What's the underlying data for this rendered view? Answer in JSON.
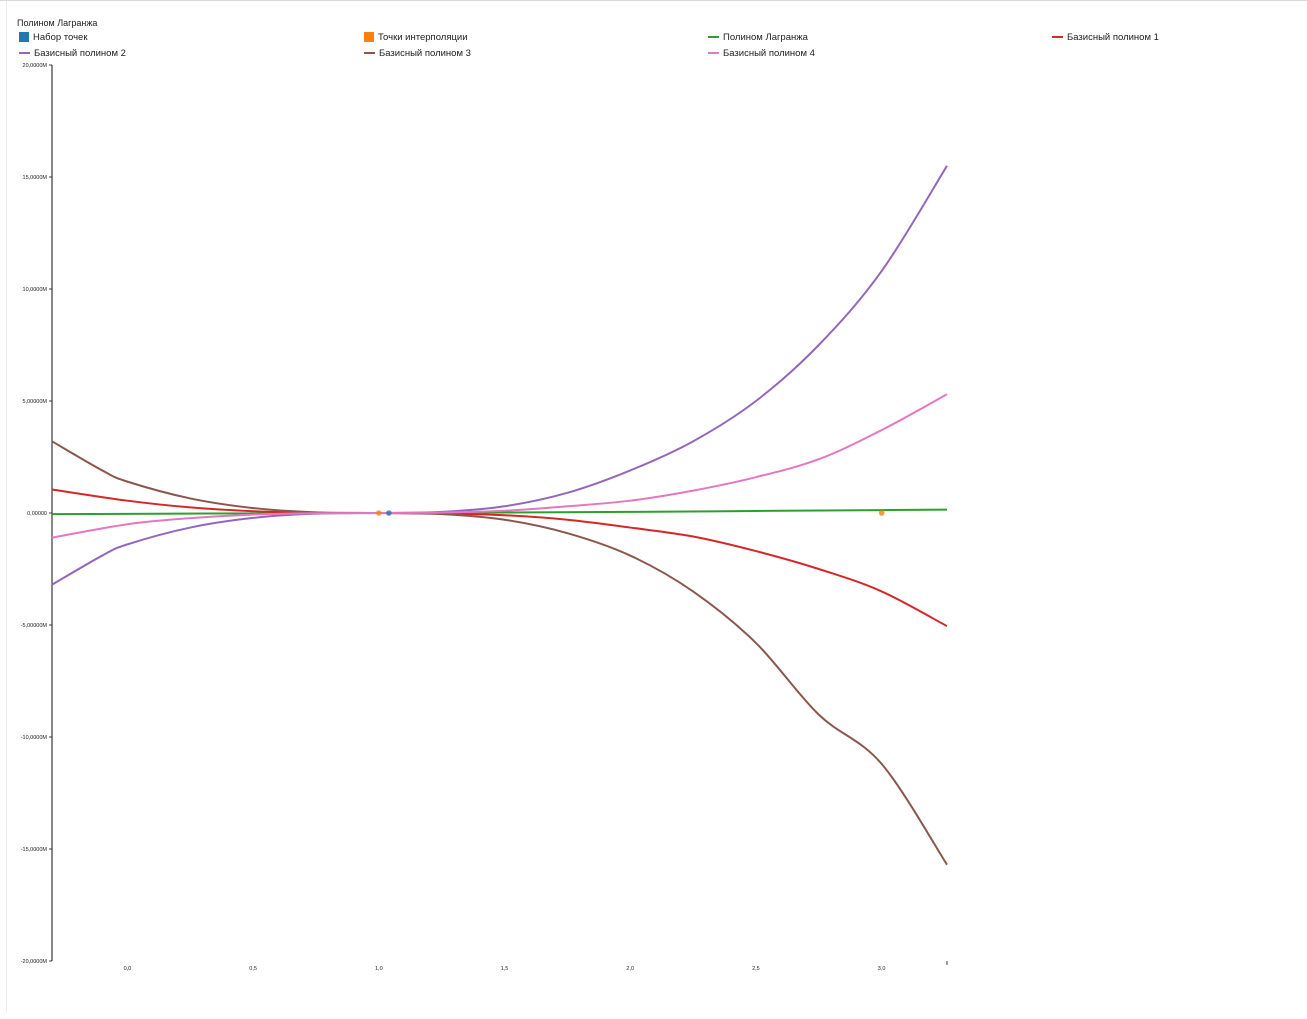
{
  "chart_data": {
    "type": "line",
    "title": "Полином Лагранжа",
    "xlabel": "",
    "ylabel": "",
    "xlim": [
      -0.3,
      3.26
    ],
    "ylim": [
      -20000000,
      20000000
    ],
    "x_ticks": [
      {
        "value": 0.0,
        "label": "0,0"
      },
      {
        "value": 0.5,
        "label": "0,5"
      },
      {
        "value": 1.0,
        "label": "1,0"
      },
      {
        "value": 1.5,
        "label": "1,5"
      },
      {
        "value": 2.0,
        "label": "2,0"
      },
      {
        "value": 2.5,
        "label": "2,5"
      },
      {
        "value": 3.0,
        "label": "3,0"
      }
    ],
    "y_ticks": [
      {
        "value": 20000000,
        "label": "20,0000M"
      },
      {
        "value": 15000000,
        "label": "15,0000M"
      },
      {
        "value": 10000000,
        "label": "10,0000M"
      },
      {
        "value": 5000000,
        "label": "5,00000M"
      },
      {
        "value": 0,
        "label": "0,00000"
      },
      {
        "value": -5000000,
        "label": "-5,00000M"
      },
      {
        "value": -10000000,
        "label": "-10,0000M"
      },
      {
        "value": -15000000,
        "label": "-15,0000M"
      },
      {
        "value": -20000000,
        "label": "-20,0000M"
      }
    ],
    "grid": false,
    "legend_position": "top",
    "legend": [
      {
        "name": "Набор точек",
        "kind": "box",
        "color": "#1f77b4"
      },
      {
        "name": "Точки интерполяции",
        "kind": "box",
        "color": "#ff7f0e"
      },
      {
        "name": "Полином Лагранжа",
        "kind": "line",
        "color": "#2ca02c"
      },
      {
        "name": "Базисный полином 1",
        "kind": "line",
        "color": "#d62728"
      },
      {
        "name": "Базисный полином 2",
        "kind": "line",
        "color": "#9467bd"
      },
      {
        "name": "Базисный полином 3",
        "kind": "line",
        "color": "#8c564b"
      },
      {
        "name": "Базисный полином 4",
        "kind": "line",
        "color": "#e377c2"
      }
    ],
    "series": [
      {
        "name": "Полином Лагранжа",
        "color": "#2ca02c",
        "x": [
          -0.3,
          0.0,
          0.5,
          1.0,
          1.5,
          2.0,
          2.5,
          3.0,
          3.26
        ],
        "y": [
          -50000,
          -40000,
          -15000,
          0,
          20000,
          50000,
          90000,
          130000,
          150000
        ]
      },
      {
        "name": "Базисный полином 1",
        "color": "#d62728",
        "x": [
          -0.3,
          0.0,
          0.25,
          0.5,
          0.75,
          1.0,
          1.25,
          1.5,
          1.75,
          2.0,
          2.25,
          2.5,
          2.75,
          3.0,
          3.26
        ],
        "y": [
          1050000,
          550000,
          250000,
          80000,
          10000,
          0,
          -20000,
          -100000,
          -300000,
          -650000,
          -1050000,
          -1700000,
          -2500000,
          -3500000,
          -5050000
        ]
      },
      {
        "name": "Базисный полином 2",
        "color": "#9467bd",
        "x": [
          -0.3,
          -0.1,
          0.0,
          0.25,
          0.5,
          0.75,
          1.0,
          1.25,
          1.5,
          1.75,
          2.0,
          2.25,
          2.5,
          2.75,
          3.0,
          3.26
        ],
        "y": [
          -3200000,
          -1900000,
          -1400000,
          -650000,
          -220000,
          -30000,
          0,
          50000,
          300000,
          900000,
          1900000,
          3200000,
          5000000,
          7500000,
          10800000,
          15500000
        ]
      },
      {
        "name": "Базисный полином 3",
        "color": "#8c564b",
        "x": [
          -0.3,
          -0.1,
          0.0,
          0.25,
          0.5,
          0.75,
          1.0,
          1.25,
          1.5,
          1.75,
          2.0,
          2.25,
          2.5,
          2.75,
          3.0,
          3.26
        ],
        "y": [
          3200000,
          1900000,
          1400000,
          650000,
          220000,
          30000,
          0,
          -50000,
          -300000,
          -900000,
          -1900000,
          -3500000,
          -5800000,
          -9000000,
          -11200000,
          -15700000
        ]
      },
      {
        "name": "Базисный полином 4",
        "color": "#e377c2",
        "x": [
          -0.3,
          0.0,
          0.25,
          0.5,
          0.75,
          1.0,
          1.25,
          1.5,
          1.75,
          2.0,
          2.25,
          2.5,
          2.75,
          3.0,
          3.26
        ],
        "y": [
          -1100000,
          -500000,
          -230000,
          -70000,
          -10000,
          0,
          20000,
          100000,
          300000,
          550000,
          1000000,
          1600000,
          2400000,
          3700000,
          5300000
        ]
      }
    ],
    "points": [
      {
        "name": "Набор точек",
        "color": "#1f77b4",
        "x": [
          1.04
        ],
        "y": [
          0
        ]
      },
      {
        "name": "Точки интерполяции",
        "color": "#ff7f0e",
        "x": [
          1.0,
          3.0
        ],
        "y": [
          0,
          0
        ]
      }
    ]
  }
}
